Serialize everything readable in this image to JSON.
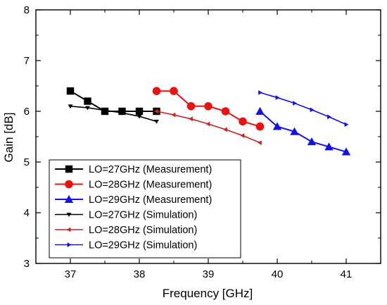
{
  "chart_data": {
    "type": "line",
    "xlabel": "Frequency [GHz]",
    "ylabel": "Gain [dB]",
    "xlim": [
      36.5,
      41.5
    ],
    "ylim": [
      3,
      8
    ],
    "xticks": [
      37,
      38,
      39,
      40,
      41
    ],
    "yticks": [
      3,
      4,
      5,
      6,
      7,
      8
    ],
    "grid": false,
    "legend_position": "bottom-left",
    "series": [
      {
        "name": "LO=27GHz (Measurement)",
        "color": "#000000",
        "marker": "square",
        "x": [
          37.0,
          37.25,
          37.5,
          37.75,
          38.0,
          38.25
        ],
        "y": [
          6.4,
          6.2,
          6.0,
          6.0,
          6.0,
          6.0
        ]
      },
      {
        "name": "LO=28GHz (Measurement)",
        "color": "#ee1111",
        "marker": "circle",
        "x": [
          38.25,
          38.5,
          38.75,
          39.0,
          39.25,
          39.5,
          39.75
        ],
        "y": [
          6.4,
          6.4,
          6.1,
          6.1,
          6.0,
          5.8,
          5.7
        ]
      },
      {
        "name": "LO=29GHz (Measurement)",
        "color": "#1111ee",
        "marker": "triangle-up",
        "x": [
          39.75,
          40.0,
          40.25,
          40.5,
          40.75,
          41.0
        ],
        "y": [
          6.0,
          5.7,
          5.6,
          5.4,
          5.3,
          5.2
        ]
      },
      {
        "name": "LO=27GHz (Simulation)",
        "color": "#000000",
        "marker": "triangle-down",
        "x": [
          37.0,
          37.25,
          37.5,
          37.75,
          38.0,
          38.25
        ],
        "y": [
          6.1,
          6.07,
          6.02,
          5.97,
          5.9,
          5.8
        ]
      },
      {
        "name": "LO=28GHz (Simulation)",
        "color": "#cc2222",
        "marker": "triangle-left",
        "x": [
          38.25,
          38.5,
          38.75,
          39.0,
          39.25,
          39.5,
          39.75
        ],
        "y": [
          6.0,
          5.93,
          5.85,
          5.75,
          5.64,
          5.52,
          5.38
        ]
      },
      {
        "name": "LO=29GHz (Simulation)",
        "color": "#1111ee",
        "marker": "triangle-right",
        "x": [
          39.75,
          40.0,
          40.25,
          40.5,
          40.75,
          41.0
        ],
        "y": [
          6.37,
          6.27,
          6.16,
          6.03,
          5.89,
          5.74
        ]
      }
    ]
  }
}
